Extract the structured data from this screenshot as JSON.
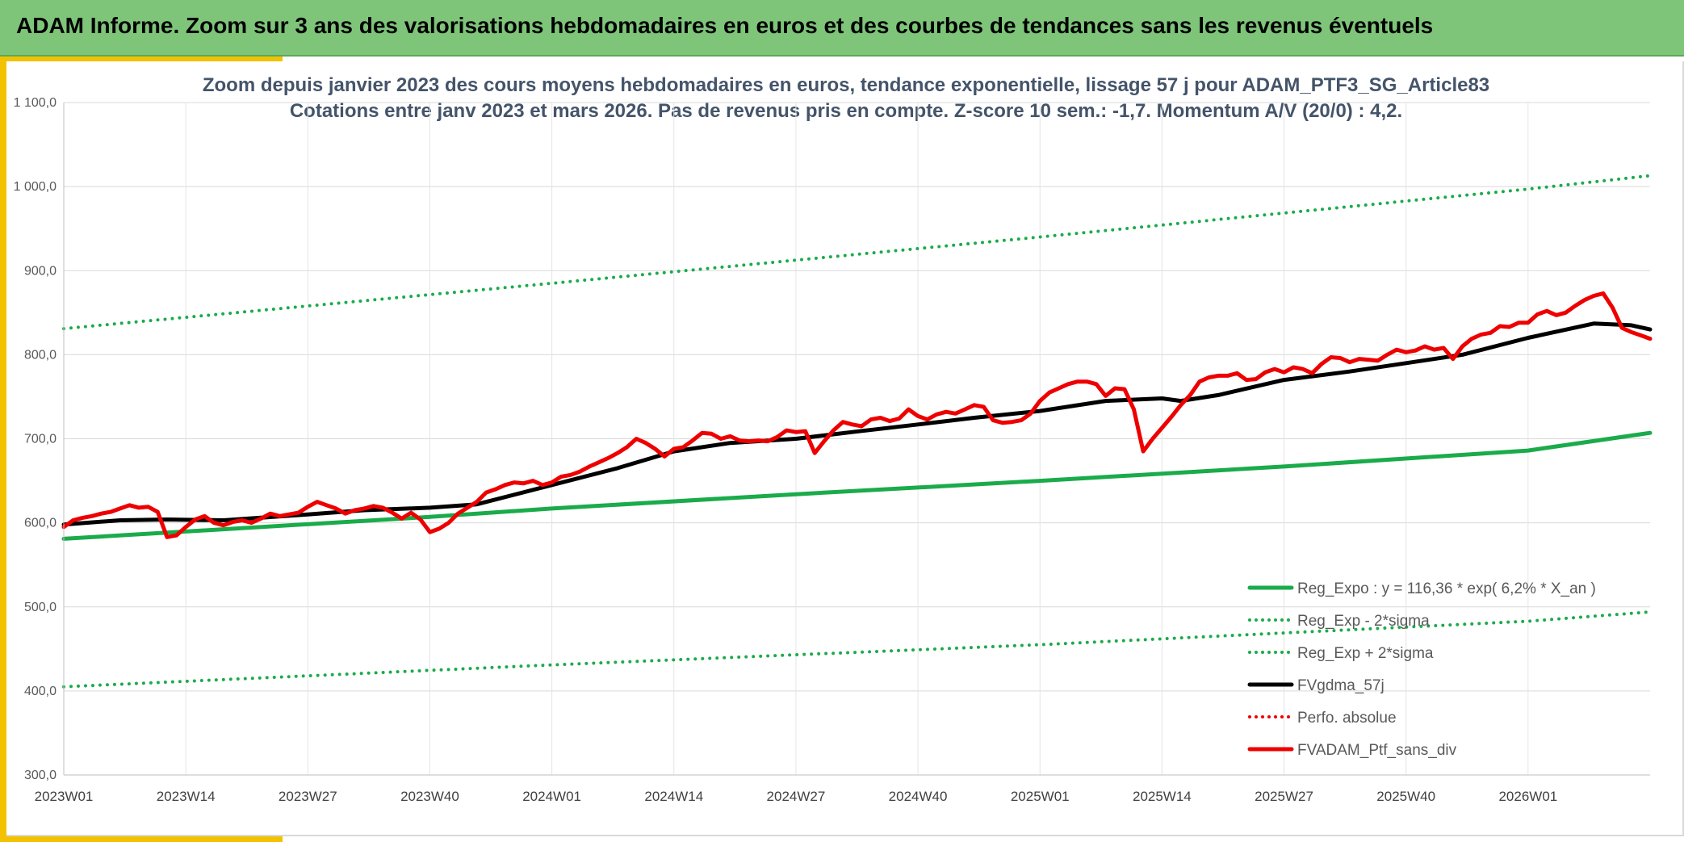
{
  "banner": {
    "title": "ADAM Informe. Zoom sur 3 ans des valorisations hebdomadaires en euros et des courbes de tendances sans les revenus éventuels"
  },
  "colors": {
    "banner_bg": "#7ec57a",
    "accent": "#f2c200",
    "trend_green": "#1aab4b",
    "smooth_black": "#000000",
    "price_red": "#ee0000"
  },
  "chart_data": {
    "type": "line",
    "title": "Zoom depuis janvier 2023 des cours moyens hebdomadaires en euros, tendance exponentielle, lissage 57 j pour ADAM_PTF3_SG_Article83",
    "subtitle": "Cotations entre janv 2023 et mars 2026. Pas de revenus pris en compte. Z-score 10 sem.: -1,7. Momentum A/V (20/0) : 4,2.",
    "y_axis": {
      "min": 300,
      "max": 1100,
      "ticks": [
        "300,0",
        "400,0",
        "500,0",
        "600,0",
        "700,0",
        "800,0",
        "900,0",
        "1 000,0",
        "1 100,0"
      ]
    },
    "x_axis": {
      "ticks": [
        "2023W01",
        "2023W14",
        "2023W27",
        "2023W40",
        "2024W01",
        "2024W14",
        "2024W27",
        "2024W40",
        "2025W01",
        "2025W14",
        "2025W27",
        "2025W40",
        "2026W01"
      ],
      "week_index_range": [
        1,
        170
      ]
    },
    "grid": true,
    "legend_position": "bottom-right",
    "series": [
      {
        "name": "Reg_Expo : y = 116,36 * exp( 6,2% *  X_an )",
        "style": "solid",
        "color": "#1aab4b",
        "points": [
          [
            1,
            581
          ],
          [
            40,
            607
          ],
          [
            53,
            617
          ],
          [
            79,
            634
          ],
          [
            105,
            650
          ],
          [
            131,
            667
          ],
          [
            157,
            686
          ],
          [
            170,
            707
          ]
        ]
      },
      {
        "name": "Reg_Exp - 2*sigma",
        "style": "dotted",
        "color": "#1aab4b",
        "points": [
          [
            1,
            405
          ],
          [
            53,
            431
          ],
          [
            105,
            455
          ],
          [
            157,
            483
          ],
          [
            170,
            494
          ]
        ]
      },
      {
        "name": "Reg_Exp + 2*sigma",
        "style": "dotted",
        "color": "#1aab4b",
        "points": [
          [
            1,
            831
          ],
          [
            53,
            885
          ],
          [
            105,
            940
          ],
          [
            157,
            997
          ],
          [
            170,
            1013
          ]
        ]
      },
      {
        "name": "FVgdma_57j",
        "style": "solid",
        "color": "#000000",
        "points": [
          [
            1,
            598
          ],
          [
            7,
            603
          ],
          [
            12,
            604
          ],
          [
            18,
            603
          ],
          [
            27,
            610
          ],
          [
            33,
            615
          ],
          [
            40,
            618
          ],
          [
            45,
            622
          ],
          [
            53,
            645
          ],
          [
            60,
            665
          ],
          [
            66,
            685
          ],
          [
            72,
            695
          ],
          [
            79,
            700
          ],
          [
            85,
            708
          ],
          [
            92,
            717
          ],
          [
            98,
            725
          ],
          [
            105,
            733
          ],
          [
            112,
            745
          ],
          [
            118,
            748
          ],
          [
            120,
            745
          ],
          [
            124,
            752
          ],
          [
            131,
            770
          ],
          [
            138,
            780
          ],
          [
            144,
            790
          ],
          [
            150,
            800
          ],
          [
            157,
            820
          ],
          [
            164,
            837
          ],
          [
            168,
            835
          ],
          [
            170,
            830
          ]
        ]
      },
      {
        "name": "Perfo. absolue",
        "style": "dotted",
        "color": "#ee0000",
        "points": []
      },
      {
        "name": "FVADAM_Ptf_sans_div",
        "style": "solid",
        "color": "#ee0000",
        "points": [
          [
            1,
            595
          ],
          [
            2,
            603
          ],
          [
            3,
            606
          ],
          [
            4,
            608
          ],
          [
            5,
            611
          ],
          [
            6,
            613
          ],
          [
            7,
            617
          ],
          [
            8,
            621
          ],
          [
            9,
            618
          ],
          [
            10,
            619
          ],
          [
            11,
            613
          ],
          [
            12,
            583
          ],
          [
            13,
            585
          ],
          [
            14,
            595
          ],
          [
            15,
            604
          ],
          [
            16,
            608
          ],
          [
            17,
            600
          ],
          [
            18,
            597
          ],
          [
            19,
            601
          ],
          [
            20,
            603
          ],
          [
            21,
            600
          ],
          [
            22,
            605
          ],
          [
            23,
            611
          ],
          [
            24,
            608
          ],
          [
            25,
            610
          ],
          [
            26,
            612
          ],
          [
            27,
            619
          ],
          [
            28,
            625
          ],
          [
            29,
            621
          ],
          [
            30,
            617
          ],
          [
            31,
            611
          ],
          [
            32,
            615
          ],
          [
            33,
            617
          ],
          [
            34,
            620
          ],
          [
            35,
            618
          ],
          [
            36,
            612
          ],
          [
            37,
            605
          ],
          [
            38,
            612
          ],
          [
            39,
            604
          ],
          [
            40,
            589
          ],
          [
            41,
            593
          ],
          [
            42,
            600
          ],
          [
            43,
            611
          ],
          [
            44,
            618
          ],
          [
            45,
            625
          ],
          [
            46,
            636
          ],
          [
            47,
            640
          ],
          [
            48,
            645
          ],
          [
            49,
            648
          ],
          [
            50,
            647
          ],
          [
            51,
            650
          ],
          [
            52,
            645
          ],
          [
            53,
            648
          ],
          [
            54,
            655
          ],
          [
            55,
            657
          ],
          [
            56,
            661
          ],
          [
            57,
            667
          ],
          [
            58,
            672
          ],
          [
            59,
            677
          ],
          [
            60,
            683
          ],
          [
            61,
            690
          ],
          [
            62,
            700
          ],
          [
            63,
            695
          ],
          [
            64,
            688
          ],
          [
            65,
            679
          ],
          [
            66,
            688
          ],
          [
            67,
            690
          ],
          [
            68,
            698
          ],
          [
            69,
            707
          ],
          [
            70,
            706
          ],
          [
            71,
            700
          ],
          [
            72,
            703
          ],
          [
            73,
            698
          ],
          [
            74,
            697
          ],
          [
            75,
            698
          ],
          [
            76,
            697
          ],
          [
            77,
            702
          ],
          [
            78,
            710
          ],
          [
            79,
            708
          ],
          [
            80,
            709
          ],
          [
            81,
            683
          ],
          [
            82,
            697
          ],
          [
            83,
            710
          ],
          [
            84,
            720
          ],
          [
            85,
            717
          ],
          [
            86,
            715
          ],
          [
            87,
            723
          ],
          [
            88,
            725
          ],
          [
            89,
            721
          ],
          [
            90,
            724
          ],
          [
            91,
            735
          ],
          [
            92,
            727
          ],
          [
            93,
            723
          ],
          [
            94,
            729
          ],
          [
            95,
            732
          ],
          [
            96,
            730
          ],
          [
            97,
            735
          ],
          [
            98,
            740
          ],
          [
            99,
            738
          ],
          [
            100,
            722
          ],
          [
            101,
            719
          ],
          [
            102,
            720
          ],
          [
            103,
            722
          ],
          [
            104,
            730
          ],
          [
            105,
            745
          ],
          [
            106,
            755
          ],
          [
            107,
            760
          ],
          [
            108,
            765
          ],
          [
            109,
            768
          ],
          [
            110,
            768
          ],
          [
            111,
            765
          ],
          [
            112,
            751
          ],
          [
            113,
            760
          ],
          [
            114,
            759
          ],
          [
            115,
            735
          ],
          [
            116,
            685
          ],
          [
            117,
            700
          ],
          [
            118,
            713
          ],
          [
            119,
            726
          ],
          [
            120,
            740
          ],
          [
            121,
            752
          ],
          [
            122,
            768
          ],
          [
            123,
            773
          ],
          [
            124,
            775
          ],
          [
            125,
            775
          ],
          [
            126,
            778
          ],
          [
            127,
            770
          ],
          [
            128,
            771
          ],
          [
            129,
            779
          ],
          [
            130,
            783
          ],
          [
            131,
            779
          ],
          [
            132,
            785
          ],
          [
            133,
            783
          ],
          [
            134,
            778
          ],
          [
            135,
            789
          ],
          [
            136,
            797
          ],
          [
            137,
            796
          ],
          [
            138,
            791
          ],
          [
            139,
            795
          ],
          [
            140,
            794
          ],
          [
            141,
            793
          ],
          [
            142,
            800
          ],
          [
            143,
            806
          ],
          [
            144,
            803
          ],
          [
            145,
            805
          ],
          [
            146,
            810
          ],
          [
            147,
            806
          ],
          [
            148,
            808
          ],
          [
            149,
            795
          ],
          [
            150,
            810
          ],
          [
            151,
            819
          ],
          [
            152,
            824
          ],
          [
            153,
            826
          ],
          [
            154,
            834
          ],
          [
            155,
            833
          ],
          [
            156,
            838
          ],
          [
            157,
            838
          ],
          [
            158,
            848
          ],
          [
            159,
            852
          ],
          [
            160,
            847
          ],
          [
            161,
            850
          ],
          [
            162,
            858
          ],
          [
            163,
            865
          ],
          [
            164,
            870
          ],
          [
            165,
            873
          ],
          [
            166,
            856
          ],
          [
            167,
            832
          ],
          [
            168,
            827
          ],
          [
            169,
            823
          ],
          [
            170,
            819
          ]
        ]
      }
    ]
  }
}
